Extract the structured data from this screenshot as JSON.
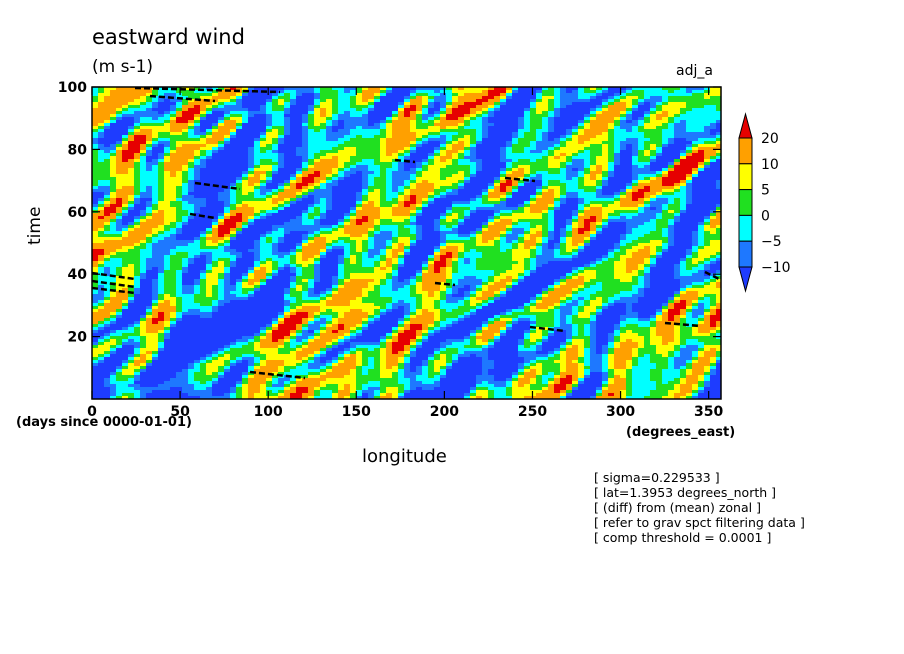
{
  "chart_data": {
    "type": "heatmap",
    "title": "eastward wind",
    "units": "(m s-1)",
    "experiment_label": "adj_a",
    "xlabel": "longitude",
    "ylabel": "time",
    "x_units": "(degrees_east)",
    "y_origin_label": "(days since 0000-01-01)",
    "xlim": [
      0,
      357
    ],
    "ylim": [
      0,
      100
    ],
    "x_ticks": [
      0,
      50,
      100,
      150,
      200,
      250,
      300,
      350
    ],
    "y_ticks": [
      20,
      40,
      60,
      80,
      100
    ],
    "color_levels": [
      -10,
      -5,
      0,
      5,
      10,
      20
    ],
    "colorbar_labels": [
      "20",
      "10",
      "5",
      "0",
      "−5",
      "−10"
    ],
    "colorbar_colors": [
      "#e60000",
      "#ffa000",
      "#ffff00",
      "#20e020",
      "#00ffff",
      "#1e78ff",
      "#1e3cff"
    ],
    "grid": false,
    "notes": [
      "[ sigma=0.229533 ]",
      "[ lat=1.3953 degrees_north ]",
      "[ (diff) from (mean) zonal ]",
      "[ refer to grav spct filtering data ]",
      "[ comp threshold = 0.0001 ]"
    ]
  }
}
